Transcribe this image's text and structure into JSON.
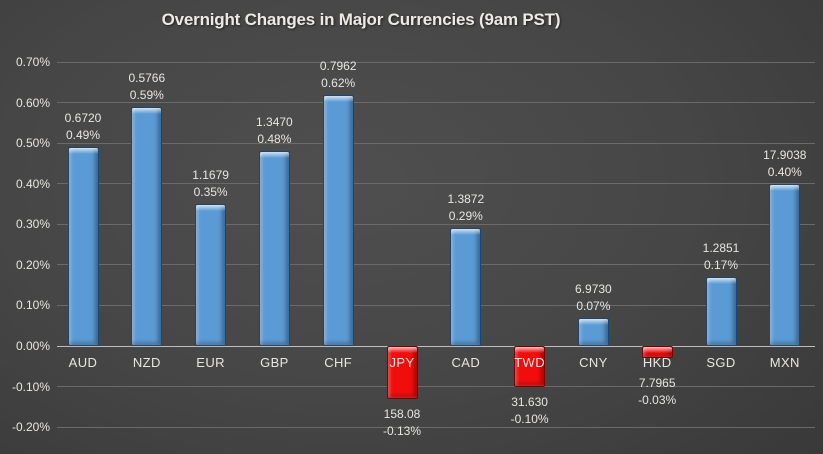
{
  "chart_data": {
    "type": "bar",
    "title": "Overnight Changes in Major Currencies (9am PST)",
    "xlabel": "",
    "ylabel": "",
    "ylim": [
      -0.2,
      0.7
    ],
    "grid": true,
    "legend": false,
    "y_axis": {
      "ticks": [
        {
          "label": "0.70%",
          "value": 0.7
        },
        {
          "label": "0.60%",
          "value": 0.6
        },
        {
          "label": "0.50%",
          "value": 0.5
        },
        {
          "label": "0.40%",
          "value": 0.4
        },
        {
          "label": "0.30%",
          "value": 0.3
        },
        {
          "label": "0.20%",
          "value": 0.2
        },
        {
          "label": "0.10%",
          "value": 0.1
        },
        {
          "label": "0.00%",
          "value": 0.0
        },
        {
          "label": "-0.10%",
          "value": -0.1
        },
        {
          "label": "-0.20%",
          "value": -0.2
        }
      ]
    },
    "categories": [
      "AUD",
      "NZD",
      "EUR",
      "GBP",
      "CHF",
      "JPY",
      "CAD",
      "TWD",
      "CNY",
      "HKD",
      "SGD",
      "MXN"
    ],
    "bars": [
      {
        "code": "AUD",
        "rate": 0.672,
        "rate_label": "0.6720",
        "change_pct": 0.49,
        "pct_label": "0.49%"
      },
      {
        "code": "NZD",
        "rate": 0.5766,
        "rate_label": "0.5766",
        "change_pct": 0.59,
        "pct_label": "0.59%"
      },
      {
        "code": "EUR",
        "rate": 1.1679,
        "rate_label": "1.1679",
        "change_pct": 0.35,
        "pct_label": "0.35%"
      },
      {
        "code": "GBP",
        "rate": 1.347,
        "rate_label": "1.3470",
        "change_pct": 0.48,
        "pct_label": "0.48%"
      },
      {
        "code": "CHF",
        "rate": 0.7962,
        "rate_label": "0.7962",
        "change_pct": 0.62,
        "pct_label": "0.62%"
      },
      {
        "code": "JPY",
        "rate": 158.08,
        "rate_label": "158.08",
        "change_pct": -0.13,
        "pct_label": "-0.13%"
      },
      {
        "code": "CAD",
        "rate": 1.3872,
        "rate_label": "1.3872",
        "change_pct": 0.29,
        "pct_label": "0.29%"
      },
      {
        "code": "TWD",
        "rate": 31.63,
        "rate_label": "31.630",
        "change_pct": -0.1,
        "pct_label": "-0.10%"
      },
      {
        "code": "CNY",
        "rate": 6.973,
        "rate_label": "6.9730",
        "change_pct": 0.07,
        "pct_label": "0.07%"
      },
      {
        "code": "HKD",
        "rate": 7.7965,
        "rate_label": "7.7965",
        "change_pct": -0.03,
        "pct_label": "-0.03%"
      },
      {
        "code": "SGD",
        "rate": 1.2851,
        "rate_label": "1.2851",
        "change_pct": 0.17,
        "pct_label": "0.17%"
      },
      {
        "code": "MXN",
        "rate": 17.9038,
        "rate_label": "17.9038",
        "change_pct": 0.4,
        "pct_label": "0.40%"
      }
    ],
    "colors": {
      "positive_bar": "#5B9BD5",
      "negative_bar": "#F20D0D",
      "background_center": "#4C4C4C",
      "background_edge": "#2A2A2A",
      "gridline": "#6A6A6A",
      "zero_line": "#BDBDBD",
      "text": "#E8E6E1",
      "title_text": "#ECEAE4"
    }
  }
}
